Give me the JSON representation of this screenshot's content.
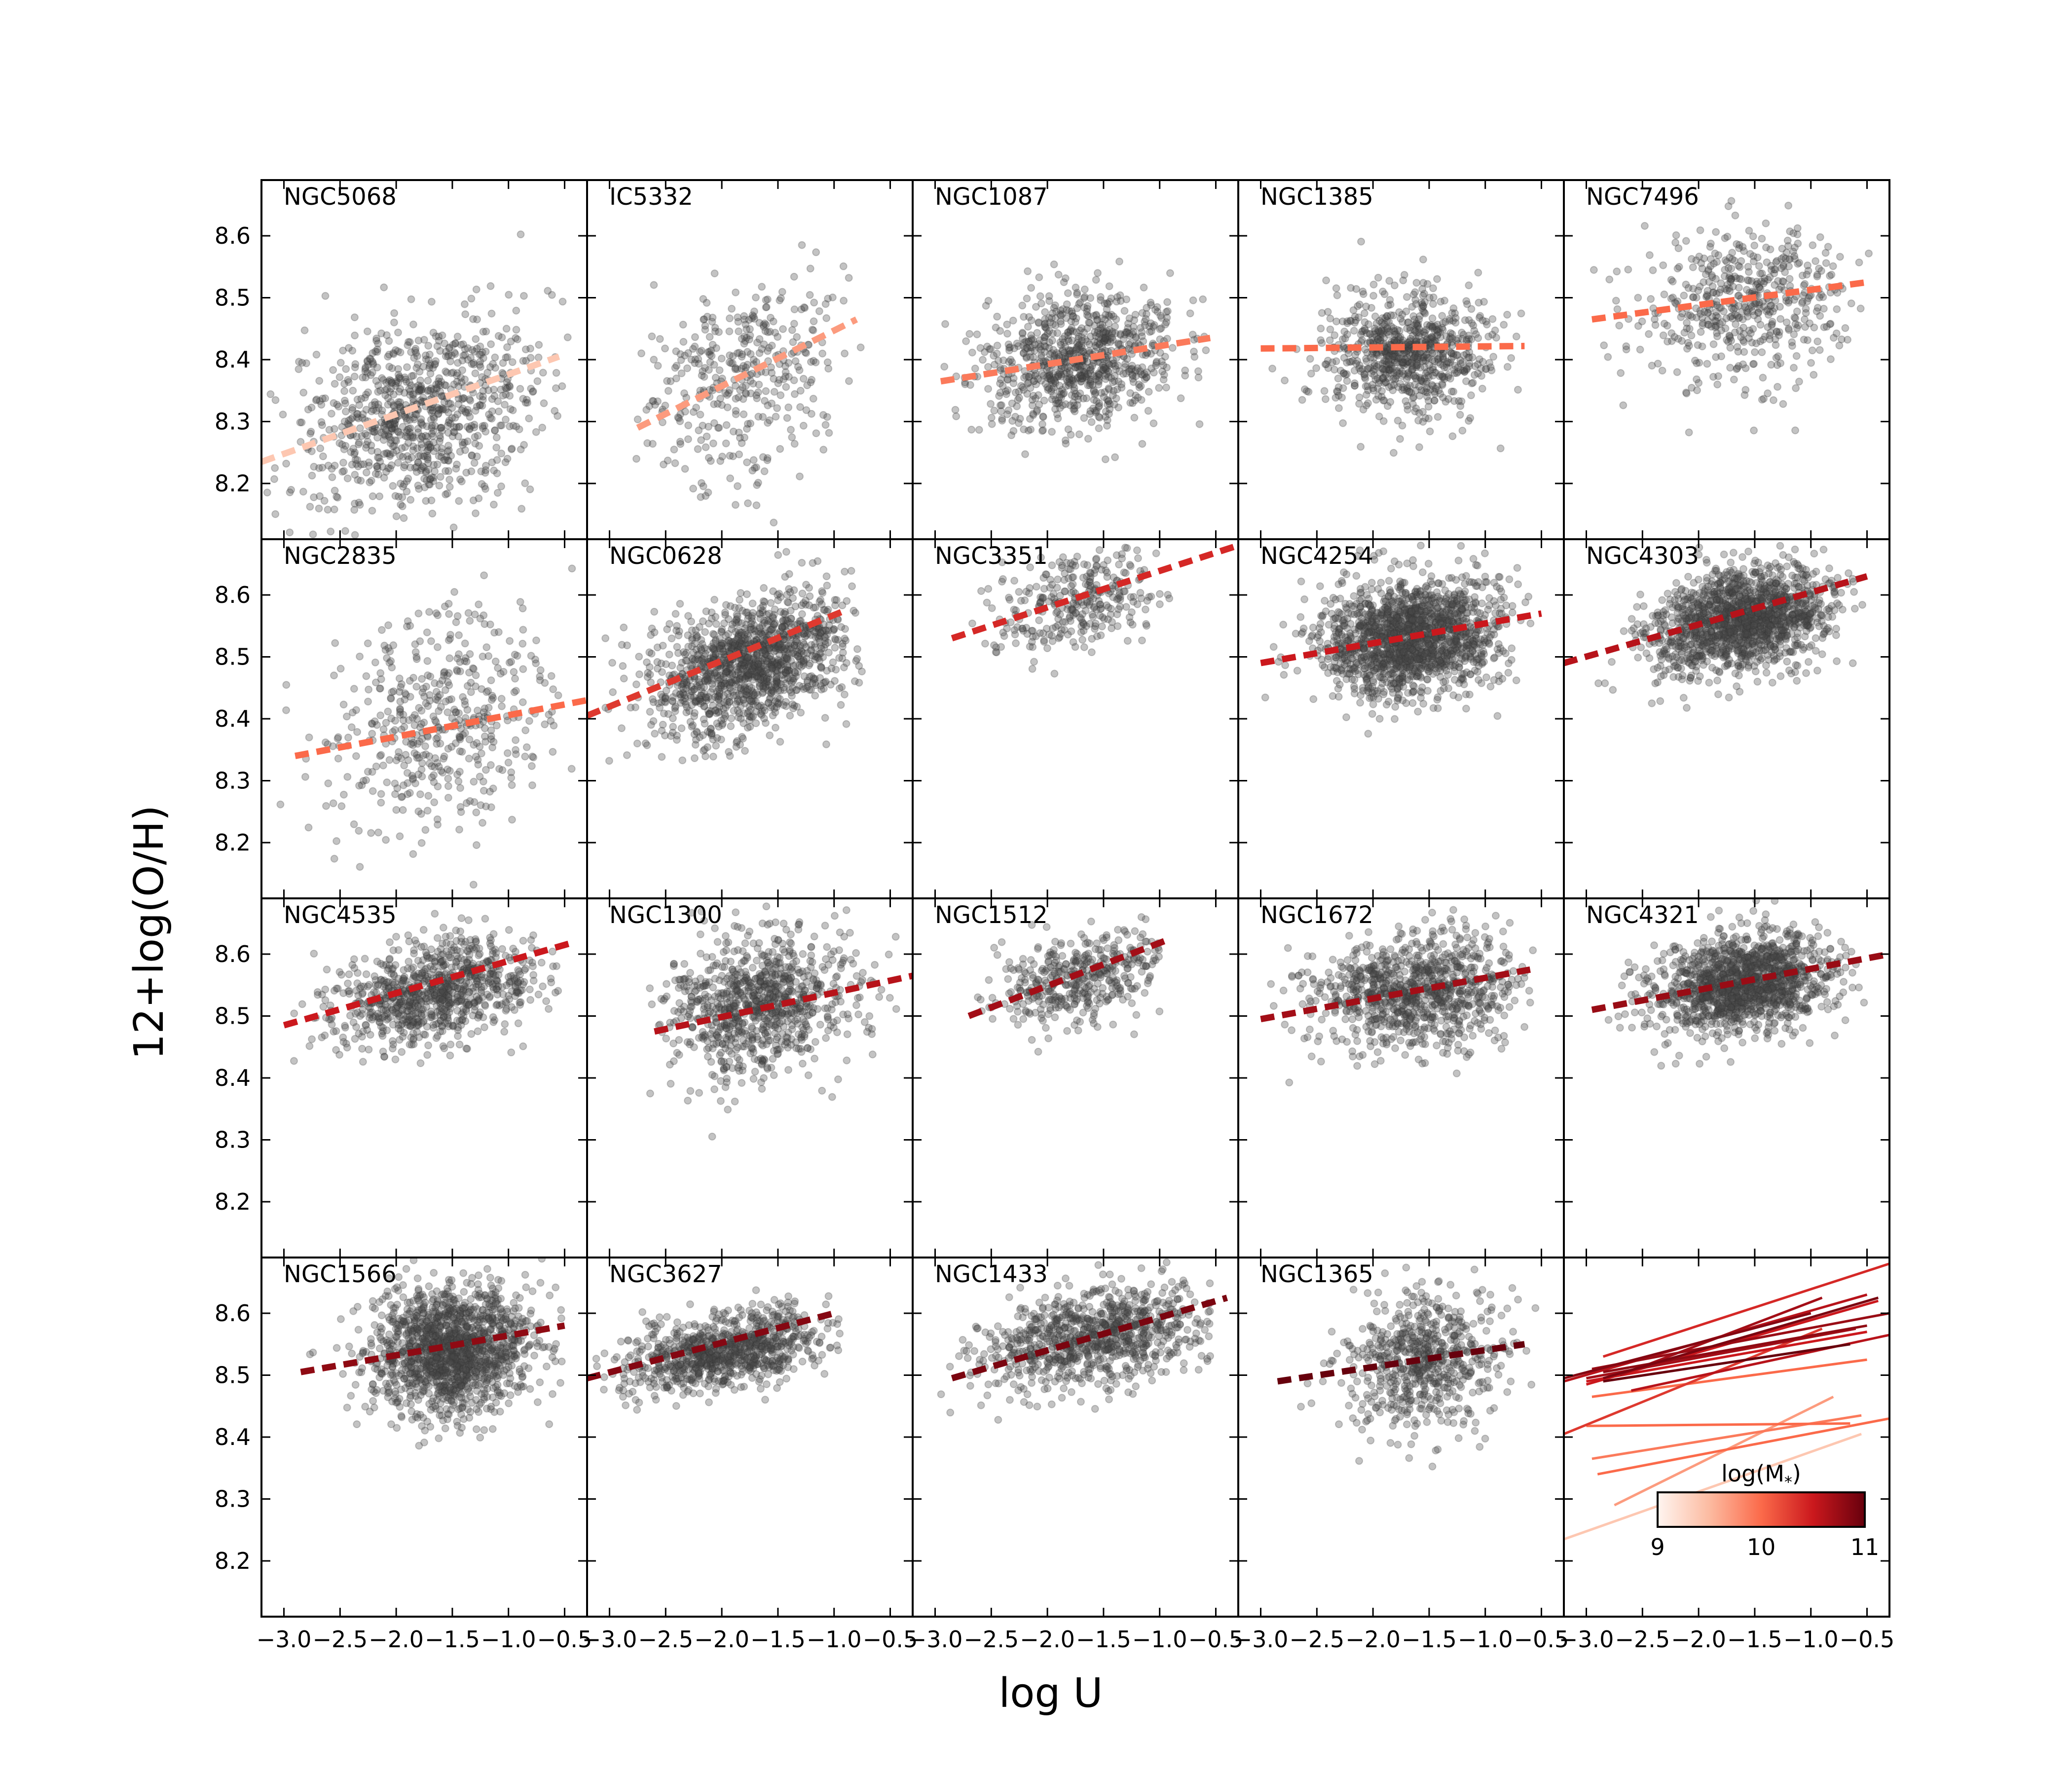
{
  "chart_data": {
    "type": "scatter",
    "xlabel": "log U",
    "ylabel": "12+log(O/H)",
    "xlim": [
      -3.2,
      -0.3
    ],
    "ylim": [
      8.11,
      8.69
    ],
    "x_ticks": [
      -3.0,
      -2.5,
      -2.0,
      -1.5,
      -1.0,
      -0.5
    ],
    "x_tick_labels": [
      "−3.0",
      "−2.5",
      "−2.0",
      "−1.5",
      "−1.0",
      "−0.5"
    ],
    "y_ticks": [
      8.2,
      8.3,
      8.4,
      8.5,
      8.6
    ],
    "y_tick_labels": [
      "8.2",
      "8.3",
      "8.4",
      "8.5",
      "8.6"
    ],
    "colorbar": {
      "label": "log(M$_*$)",
      "label_text": "log(M",
      "label_sub": "*",
      "label_close": ")",
      "range": [
        9,
        11
      ],
      "ticks": [
        "9",
        "10",
        "11"
      ],
      "colormap": [
        "#fff5f0",
        "#fcbba1",
        "#fb6a4a",
        "#cb181d",
        "#67000d"
      ]
    },
    "galaxies": [
      {
        "name": "NGC5068",
        "logM": 9.4,
        "fit": {
          "x0": -3.2,
          "y0": 8.235,
          "x1": -0.55,
          "y1": 8.405
        },
        "cloud": {
          "cx": -1.8,
          "cy": 8.31,
          "sx": 0.55,
          "sy": 0.075,
          "n": 900,
          "xmin": -3.15,
          "xmax": -0.4
        }
      },
      {
        "name": "IC5332",
        "logM": 9.7,
        "fit": {
          "x0": -2.75,
          "y0": 8.29,
          "x1": -0.8,
          "y1": 8.465
        },
        "cloud": {
          "cx": -1.8,
          "cy": 8.38,
          "sx": 0.45,
          "sy": 0.08,
          "n": 380,
          "xmin": -2.8,
          "xmax": -0.7
        }
      },
      {
        "name": "NGC1087",
        "logM": 9.9,
        "fit": {
          "x0": -2.95,
          "y0": 8.365,
          "x1": -0.55,
          "y1": 8.435
        },
        "cloud": {
          "cx": -1.7,
          "cy": 8.4,
          "sx": 0.42,
          "sy": 0.055,
          "n": 850,
          "xmin": -2.95,
          "xmax": -0.5
        }
      },
      {
        "name": "NGC1385",
        "logM": 10.0,
        "fit": {
          "x0": -3.0,
          "y0": 8.418,
          "x1": -0.65,
          "y1": 8.422
        },
        "cloud": {
          "cx": -1.7,
          "cy": 8.41,
          "sx": 0.35,
          "sy": 0.05,
          "n": 800,
          "xmin": -3.0,
          "xmax": -0.6
        }
      },
      {
        "name": "NGC7496",
        "logM": 10.0,
        "fit": {
          "x0": -2.95,
          "y0": 8.465,
          "x1": -0.5,
          "y1": 8.525
        },
        "cloud": {
          "cx": -1.6,
          "cy": 8.49,
          "sx": 0.45,
          "sy": 0.06,
          "n": 520,
          "xmin": -2.95,
          "xmax": -0.45
        }
      },
      {
        "name": "NGC2835",
        "logM": 10.0,
        "fit": {
          "x0": -2.9,
          "y0": 8.34,
          "x1": -0.3,
          "y1": 8.43
        },
        "cloud": {
          "cx": -1.65,
          "cy": 8.4,
          "sx": 0.5,
          "sy": 0.085,
          "n": 480,
          "xmin": -3.1,
          "xmax": -0.4
        }
      },
      {
        "name": "NGC0628",
        "logM": 10.3,
        "fit": {
          "x0": -3.2,
          "y0": 8.405,
          "x1": -0.9,
          "y1": 8.575
        },
        "cloud": {
          "cx": -1.75,
          "cy": 8.49,
          "sx": 0.45,
          "sy": 0.05,
          "n": 1300,
          "xmin": -3.05,
          "xmax": -0.75
        }
      },
      {
        "name": "NGC3351",
        "logM": 10.4,
        "fit": {
          "x0": -2.85,
          "y0": 8.53,
          "x1": -0.3,
          "y1": 8.68
        },
        "cloud": {
          "cx": -1.75,
          "cy": 8.59,
          "sx": 0.4,
          "sy": 0.04,
          "n": 320,
          "xmin": -2.8,
          "xmax": -0.9
        }
      },
      {
        "name": "NGC4254",
        "logM": 10.5,
        "fit": {
          "x0": -3.0,
          "y0": 8.49,
          "x1": -0.5,
          "y1": 8.57
        },
        "cloud": {
          "cx": -1.65,
          "cy": 8.53,
          "sx": 0.4,
          "sy": 0.045,
          "n": 1600,
          "xmin": -3.0,
          "xmax": -0.55
        }
      },
      {
        "name": "NGC4303",
        "logM": 10.6,
        "fit": {
          "x0": -3.2,
          "y0": 8.49,
          "x1": -0.5,
          "y1": 8.63
        },
        "cloud": {
          "cx": -1.6,
          "cy": 8.56,
          "sx": 0.4,
          "sy": 0.04,
          "n": 1500,
          "xmin": -2.95,
          "xmax": -0.5
        }
      },
      {
        "name": "NGC4535",
        "logM": 10.5,
        "fit": {
          "x0": -3.0,
          "y0": 8.485,
          "x1": -0.4,
          "y1": 8.62
        },
        "cloud": {
          "cx": -1.65,
          "cy": 8.54,
          "sx": 0.45,
          "sy": 0.04,
          "n": 900,
          "xmin": -3.0,
          "xmax": -0.5
        }
      },
      {
        "name": "NGC1300",
        "logM": 10.6,
        "fit": {
          "x0": -2.6,
          "y0": 8.475,
          "x1": -0.3,
          "y1": 8.565
        },
        "cloud": {
          "cx": -1.65,
          "cy": 8.52,
          "sx": 0.4,
          "sy": 0.055,
          "n": 900,
          "xmin": -2.65,
          "xmax": -0.4
        }
      },
      {
        "name": "NGC1512",
        "logM": 10.7,
        "fit": {
          "x0": -2.7,
          "y0": 8.5,
          "x1": -0.9,
          "y1": 8.625
        },
        "cloud": {
          "cx": -1.7,
          "cy": 8.56,
          "sx": 0.4,
          "sy": 0.035,
          "n": 420,
          "xmin": -2.7,
          "xmax": -0.9
        }
      },
      {
        "name": "NGC1672",
        "logM": 10.7,
        "fit": {
          "x0": -3.0,
          "y0": 8.495,
          "x1": -0.6,
          "y1": 8.575
        },
        "cloud": {
          "cx": -1.6,
          "cy": 8.54,
          "sx": 0.45,
          "sy": 0.045,
          "n": 950,
          "xmin": -3.0,
          "xmax": -0.55
        }
      },
      {
        "name": "NGC4321",
        "logM": 10.75,
        "fit": {
          "x0": -2.95,
          "y0": 8.51,
          "x1": -0.3,
          "y1": 8.6
        },
        "cloud": {
          "cx": -1.6,
          "cy": 8.55,
          "sx": 0.4,
          "sy": 0.04,
          "n": 1400,
          "xmin": -2.95,
          "xmax": -0.5
        }
      },
      {
        "name": "NGC1566",
        "logM": 10.8,
        "fit": {
          "x0": -2.85,
          "y0": 8.505,
          "x1": -0.5,
          "y1": 8.58
        },
        "cloud": {
          "cx": -1.5,
          "cy": 8.54,
          "sx": 0.35,
          "sy": 0.05,
          "n": 1500,
          "xmin": -2.9,
          "xmax": -0.5
        }
      },
      {
        "name": "NGC3627",
        "logM": 10.85,
        "fit": {
          "x0": -3.2,
          "y0": 8.495,
          "x1": -1.0,
          "y1": 8.6
        },
        "cloud": {
          "cx": -1.95,
          "cy": 8.54,
          "sx": 0.45,
          "sy": 0.03,
          "n": 900,
          "xmin": -3.15,
          "xmax": -0.95
        }
      },
      {
        "name": "NGC1433",
        "logM": 10.9,
        "fit": {
          "x0": -2.85,
          "y0": 8.495,
          "x1": -0.4,
          "y1": 8.625
        },
        "cloud": {
          "cx": -1.6,
          "cy": 8.56,
          "sx": 0.5,
          "sy": 0.04,
          "n": 900,
          "xmin": -2.95,
          "xmax": -0.55
        }
      },
      {
        "name": "NGC1365",
        "logM": 11.0,
        "fit": {
          "x0": -2.85,
          "y0": 8.49,
          "x1": -0.65,
          "y1": 8.55
        },
        "cloud": {
          "cx": -1.55,
          "cy": 8.52,
          "sx": 0.35,
          "sy": 0.055,
          "n": 650,
          "xmin": -3.0,
          "xmax": -0.55
        }
      }
    ]
  }
}
